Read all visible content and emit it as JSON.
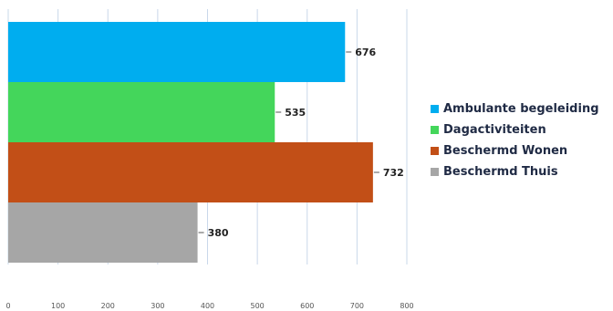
{
  "chart_data": {
    "type": "bar",
    "orientation": "horizontal",
    "categories": [
      "Ambulante begeleiding",
      "Dagactiviteiten",
      "Beschermd Wonen",
      "Beschermd Thuis"
    ],
    "values": [
      676,
      535,
      732,
      380
    ],
    "colors": [
      "#00adef",
      "#44d65b",
      "#c24f17",
      "#a6a6a6"
    ],
    "xlim": [
      0,
      800
    ],
    "xticks": [
      "0",
      "100",
      "200",
      "300",
      "400",
      "500",
      "600",
      "700",
      "800"
    ],
    "grid": true,
    "legend_position": "right",
    "title": "",
    "xlabel": "",
    "ylabel": ""
  }
}
